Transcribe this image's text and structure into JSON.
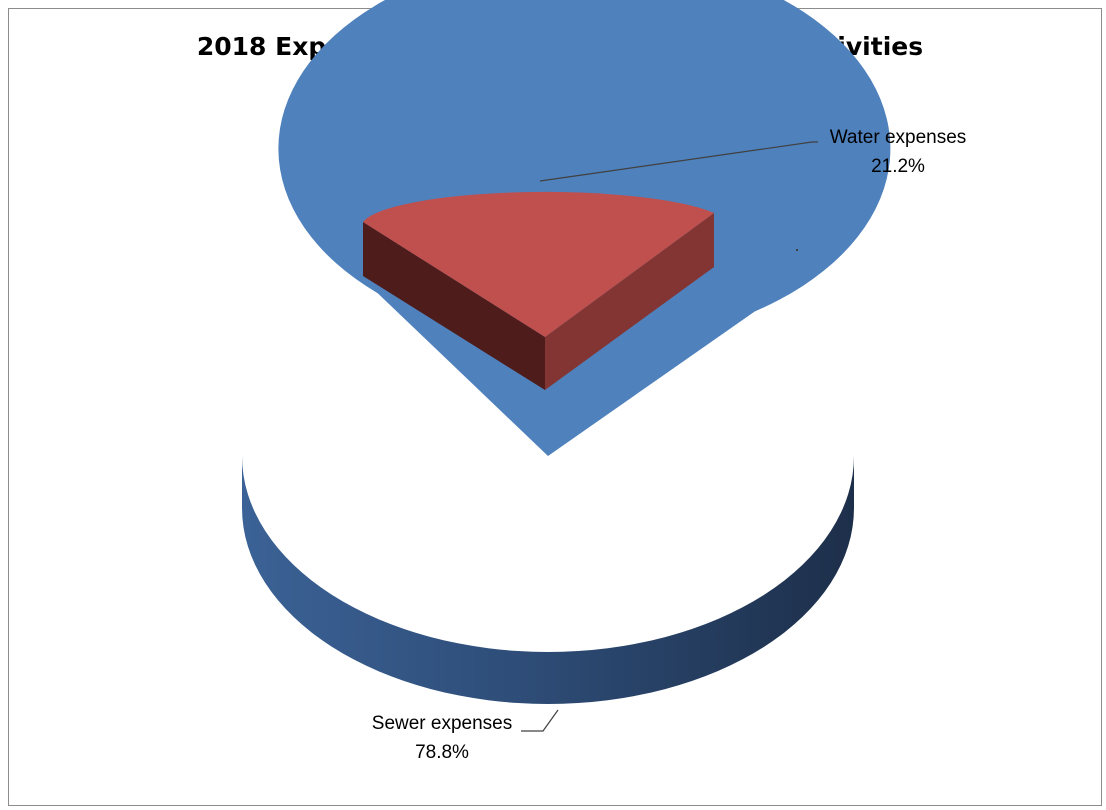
{
  "chart_data": {
    "type": "pie",
    "title": "2018 Expenses by Source - Business-type Activities",
    "three_d": true,
    "exploded_slice": "Water expenses",
    "slices": [
      {
        "name": "Sewer expenses",
        "value": 78.8,
        "label": "78.8%",
        "color": "#4f81bd"
      },
      {
        "name": "Water expenses",
        "value": 21.2,
        "label": "21.2%",
        "color": "#c0504d"
      }
    ]
  }
}
